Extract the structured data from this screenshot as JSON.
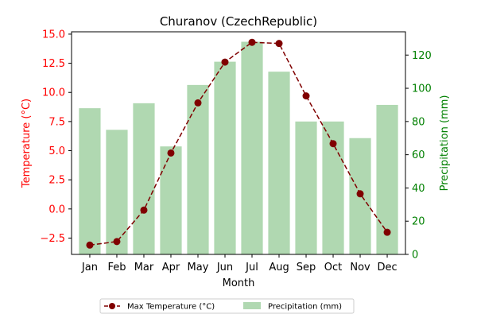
{
  "chart_data": {
    "type": "bar",
    "title": "Churanov (CzechRepublic)",
    "xlabel": "Month",
    "ylabel_left": "Temperature (°C)",
    "ylabel_right": "Precipitation (mm)",
    "categories": [
      "Jan",
      "Feb",
      "Mar",
      "Apr",
      "May",
      "Jun",
      "Jul",
      "Aug",
      "Sep",
      "Oct",
      "Nov",
      "Dec"
    ],
    "series": [
      {
        "name": "Max Temperature (°C)",
        "type": "line",
        "axis": "left",
        "color": "#800000",
        "linestyle": "dashed",
        "marker": "circle",
        "values": [
          -3.1,
          -2.8,
          -0.1,
          4.8,
          9.1,
          12.6,
          14.3,
          14.2,
          9.7,
          5.6,
          1.3,
          -2.0
        ]
      },
      {
        "name": "Precipitation (mm)",
        "type": "bar",
        "axis": "right",
        "color": "#b0d8b1",
        "values": [
          88,
          75,
          91,
          65,
          102,
          116,
          128,
          110,
          80,
          80,
          70,
          90
        ]
      }
    ],
    "ylim_left": [
      -3.9,
      15.2
    ],
    "ylim_right": [
      0,
      134
    ],
    "yticks_left": [
      "−2.5",
      "0.0",
      "2.5",
      "5.0",
      "7.5",
      "10.0",
      "12.5",
      "15.0"
    ],
    "yticks_left_values": [
      -2.5,
      0,
      2.5,
      5,
      7.5,
      10,
      12.5,
      15
    ],
    "yticks_right": [
      "0",
      "20",
      "40",
      "60",
      "80",
      "100",
      "120"
    ],
    "yticks_right_values": [
      0,
      20,
      40,
      60,
      80,
      100,
      120
    ],
    "left_axis_color": "#ff0000",
    "right_axis_color": "#008000",
    "grid": false,
    "legend_position": "bottom-center"
  }
}
